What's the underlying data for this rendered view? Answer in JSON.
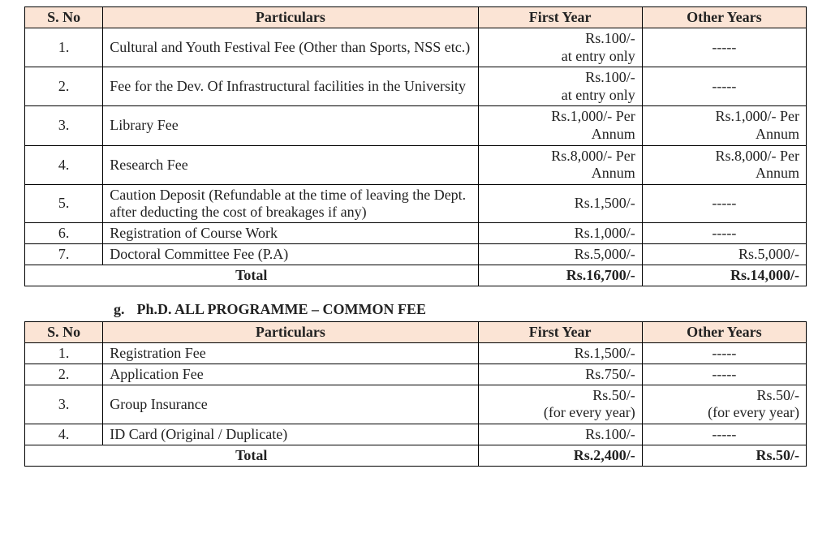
{
  "colors": {
    "header_bg": "#fbe4d5",
    "border": "#000000",
    "text": "#222222",
    "background": "#ffffff"
  },
  "typography": {
    "font_family": "Times New Roman",
    "base_fontsize_pt": 14,
    "bold_headers": true
  },
  "dash": "-----",
  "columns": {
    "sno": "S. No",
    "particulars": "Particulars",
    "first_year": "First Year",
    "other_years": "Other Years"
  },
  "table1": {
    "rows": {
      "r1": {
        "sno": "1.",
        "part": "Cultural and Youth Festival Fee (Other than Sports, NSS etc.)",
        "fy_l1": "Rs.100/-",
        "fy_l2": "at entry only",
        "oy_dash": true
      },
      "r2": {
        "sno": "2.",
        "part": "Fee for the Dev. Of Infrastructural facilities in the University",
        "fy_l1": "Rs.100/-",
        "fy_l2": "at entry only",
        "oy_dash": true
      },
      "r3": {
        "sno": "3.",
        "part": "Library Fee",
        "fy_l1": "Rs.1,000/- Per",
        "fy_l2": "Annum",
        "oy_l1": "Rs.1,000/- Per",
        "oy_l2": "Annum"
      },
      "r4": {
        "sno": "4.",
        "part": "Research Fee",
        "fy_l1": "Rs.8,000/- Per",
        "fy_l2": "Annum",
        "oy_l1": "Rs.8,000/- Per",
        "oy_l2": "Annum"
      },
      "r5": {
        "sno": "5.",
        "part": "Caution Deposit (Refundable at the time of leaving the Dept. after deducting the cost of breakages if any)",
        "fy": "Rs.1,500/-",
        "oy_dash": true
      },
      "r6": {
        "sno": "6.",
        "part": "Registration of Course Work",
        "fy": "Rs.1,000/-",
        "oy_dash": true
      },
      "r7": {
        "sno": "7.",
        "part": "Doctoral Committee Fee (P.A)",
        "fy": "Rs.5,000/-",
        "oy": "Rs.5,000/-"
      }
    },
    "total": {
      "label": "Total",
      "fy": "Rs.16,700/-",
      "oy": "Rs.14,000/-"
    }
  },
  "section2": {
    "letter": "g.",
    "title": "Ph.D. ALL PROGRAMME – COMMON FEE"
  },
  "table2": {
    "rows": {
      "r1": {
        "sno": "1.",
        "part": "Registration Fee",
        "fy": "Rs.1,500/-",
        "oy_dash": true
      },
      "r2": {
        "sno": "2.",
        "part": "Application Fee",
        "fy": "Rs.750/-",
        "oy_dash": true
      },
      "r3": {
        "sno": "3.",
        "part": "Group Insurance",
        "fy_l1": "Rs.50/-",
        "fy_l2": "(for every year)",
        "oy_l1": "Rs.50/-",
        "oy_l2": "(for every year)"
      },
      "r4": {
        "sno": "4.",
        "part": "ID Card (Original / Duplicate)",
        "fy": "Rs.100/-",
        "oy_dash": true
      }
    },
    "total": {
      "label": "Total",
      "fy": "Rs.2,400/-",
      "oy": "Rs.50/-"
    }
  }
}
